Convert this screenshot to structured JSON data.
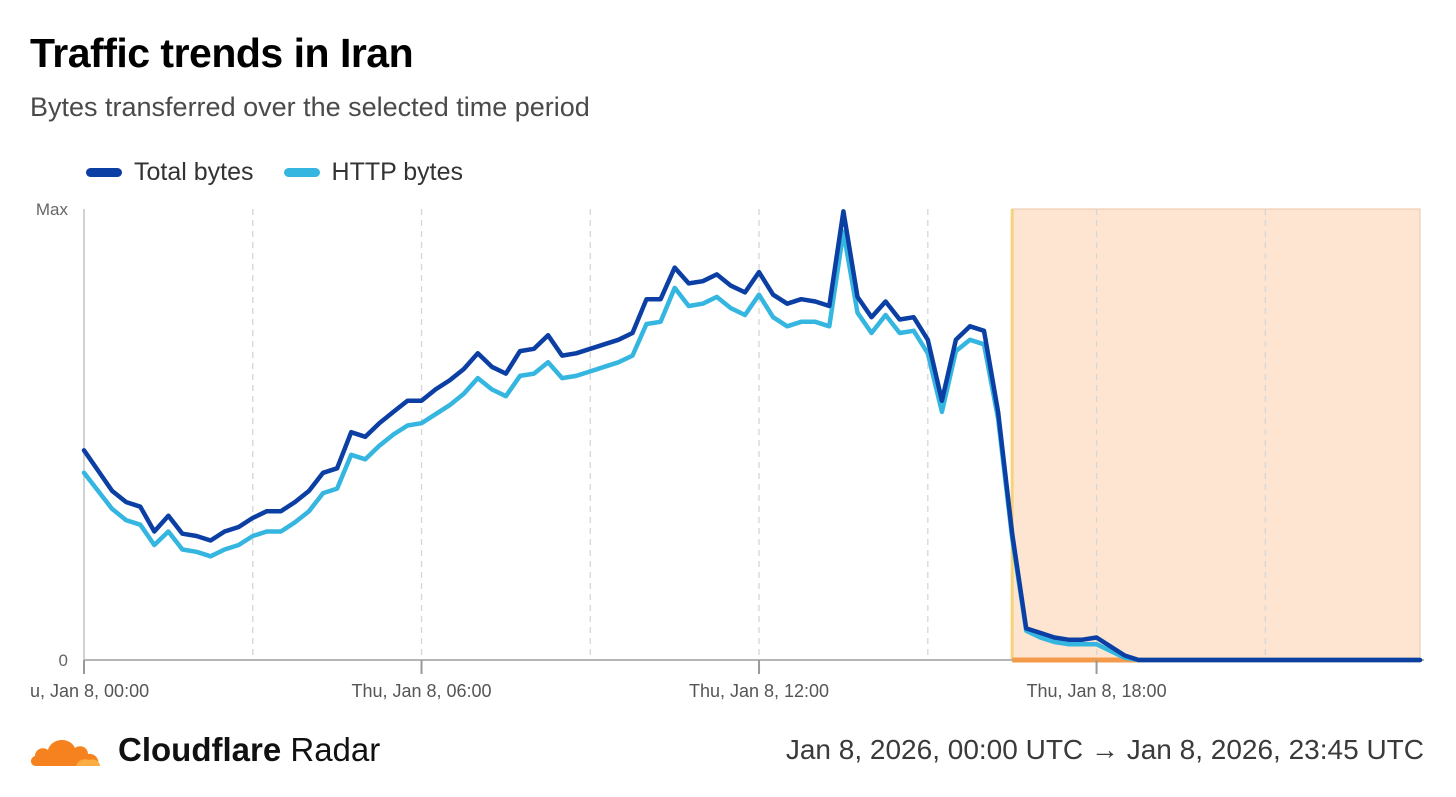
{
  "title": "Traffic trends in Iran",
  "subtitle": "Bytes transferred over the selected time period",
  "colors": {
    "total": "#0b3fa3",
    "http": "#35b6e0",
    "highlight_fill": "#fde5d2",
    "highlight_edge": "#f5d37a",
    "highlight_base": "#f39a4b"
  },
  "legend": [
    {
      "label": "Total bytes",
      "color": "#0b3fa3"
    },
    {
      "label": "HTTP bytes",
      "color": "#35b6e0"
    }
  ],
  "footer": {
    "brand_bold": "Cloudflare",
    "brand_regular": "Radar",
    "date_range": "Jan 8, 2026, 00:00 UTC → Jan 8, 2026, 23:45 UTC",
    "logo_icon": "cloud-icon"
  },
  "chart_data": {
    "type": "line",
    "xlabel": "",
    "ylabel": "",
    "x_unit": "hours since Jan 8, 00:00 UTC",
    "x_range": [
      0,
      23.75
    ],
    "ylim": [
      0,
      100
    ],
    "ytick_labels": [
      {
        "value": 100,
        "label": "Max"
      },
      {
        "value": 0,
        "label": "0"
      }
    ],
    "xtick_labels": [
      {
        "value": 0,
        "label": "u, Jan 8, 00:00"
      },
      {
        "value": 6,
        "label": "Thu, Jan 8, 06:00"
      },
      {
        "value": 12,
        "label": "Thu, Jan 8, 12:00"
      },
      {
        "value": 18,
        "label": "Thu, Jan 8, 18:00"
      }
    ],
    "minor_gridlines": [
      3,
      9,
      15,
      21
    ],
    "highlight_region": [
      16.5,
      23.75
    ],
    "x": [
      0,
      0.25,
      0.5,
      0.75,
      1,
      1.25,
      1.5,
      1.75,
      2,
      2.25,
      2.5,
      2.75,
      3,
      3.25,
      3.5,
      3.75,
      4,
      4.25,
      4.5,
      4.75,
      5,
      5.25,
      5.5,
      5.75,
      6,
      6.25,
      6.5,
      6.75,
      7,
      7.25,
      7.5,
      7.75,
      8,
      8.25,
      8.5,
      8.75,
      9,
      9.25,
      9.5,
      9.75,
      10,
      10.25,
      10.5,
      10.75,
      11,
      11.25,
      11.5,
      11.75,
      12,
      12.25,
      12.5,
      12.75,
      13,
      13.25,
      13.5,
      13.75,
      14,
      14.25,
      14.5,
      14.75,
      15,
      15.25,
      15.5,
      15.75,
      16,
      16.25,
      16.5,
      16.75,
      17,
      17.25,
      17.5,
      17.75,
      18,
      18.25,
      18.5,
      18.75,
      19,
      19.25,
      19.5,
      19.75,
      20,
      20.25,
      20.5,
      20.75,
      21,
      21.25,
      21.5,
      21.75,
      22,
      22.25,
      22.5,
      22.75,
      23,
      23.25,
      23.5,
      23.75
    ],
    "series": [
      {
        "name": "Total bytes",
        "values": [
          46.5,
          42,
          37.5,
          35,
          34,
          28.5,
          32,
          28,
          27.5,
          26.5,
          28.5,
          29.5,
          31.5,
          33,
          33,
          35,
          37.5,
          41.5,
          42.5,
          50.5,
          49.5,
          52.5,
          55,
          57.5,
          57.5,
          60,
          62,
          64.5,
          68,
          65,
          63.5,
          68.5,
          69,
          72,
          67.5,
          68,
          69,
          70,
          71,
          72.5,
          80,
          80,
          87,
          83.5,
          84,
          85.5,
          83,
          81.5,
          86,
          81,
          79,
          80,
          79.5,
          78.5,
          99.5,
          80.5,
          76,
          79.5,
          75.5,
          76,
          71,
          57.5,
          71,
          74,
          73,
          55,
          28,
          7,
          6,
          5,
          4.5,
          4.5,
          5,
          3,
          1,
          0,
          0,
          0,
          0,
          0,
          0,
          0,
          0,
          0,
          0,
          0,
          0,
          0,
          0,
          0,
          0,
          0,
          0,
          0,
          0,
          0
        ]
      },
      {
        "name": "HTTP bytes",
        "values": [
          41.5,
          37.5,
          33.5,
          31,
          30,
          25.5,
          28.5,
          24.5,
          24,
          23,
          24.5,
          25.5,
          27.5,
          28.5,
          28.5,
          30.5,
          33,
          37,
          38,
          45.5,
          44.5,
          47.5,
          50,
          52,
          52.5,
          54.5,
          56.5,
          59,
          62.5,
          60,
          58.5,
          63,
          63.5,
          66,
          62.5,
          63,
          64,
          65,
          66,
          67.5,
          74.5,
          75,
          82.5,
          78.5,
          79,
          80.5,
          78,
          76.5,
          81,
          76,
          74,
          75,
          75,
          74,
          95,
          77,
          72.5,
          76.5,
          72.5,
          73,
          68,
          55,
          68.5,
          71,
          70,
          53.5,
          27,
          6.5,
          5,
          4,
          3.5,
          3.5,
          3.5,
          2,
          0.5,
          0,
          0,
          0,
          0,
          0,
          0,
          0,
          0,
          0,
          0,
          0,
          0,
          0,
          0,
          0,
          0,
          0,
          0,
          0,
          0,
          0
        ]
      }
    ]
  }
}
